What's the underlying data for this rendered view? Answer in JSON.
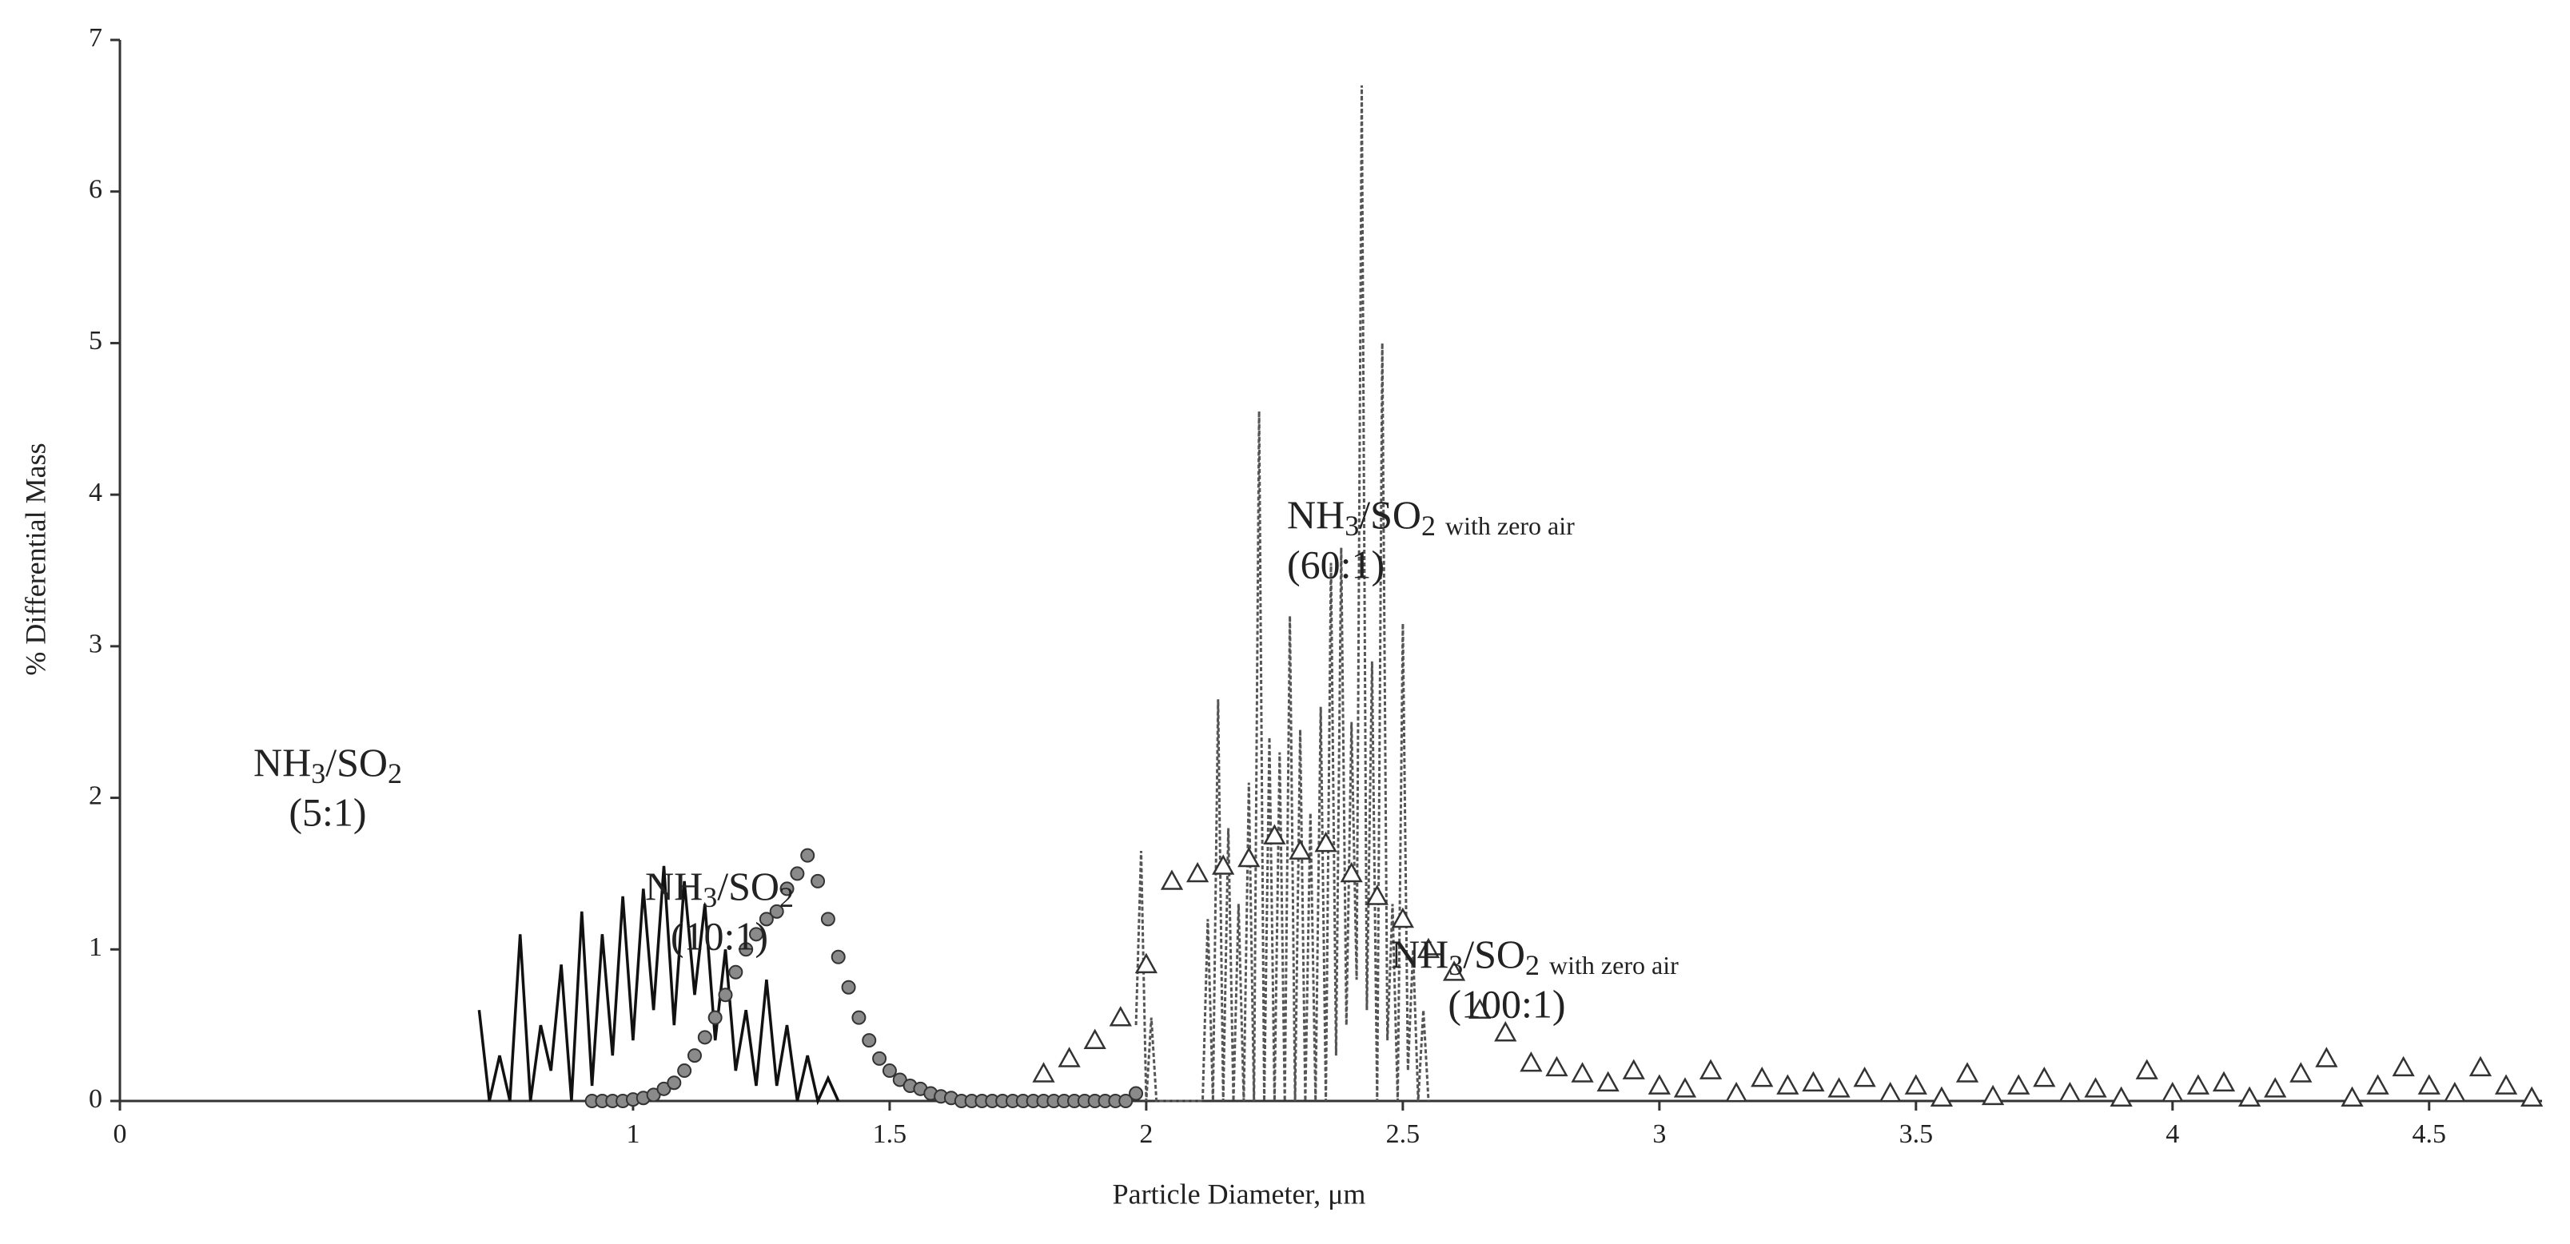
{
  "chart_data": {
    "type": "scatter",
    "x_label": "Particle Diameter, μm",
    "y_label": "% Differential Mass",
    "xlim": [
      0,
      4.72
    ],
    "ylim": [
      0,
      7
    ],
    "xticks": [
      0,
      1,
      1.5,
      2,
      2.5,
      3,
      3.5,
      4,
      4.5
    ],
    "yticks": [
      0,
      1,
      2,
      3,
      4,
      5,
      6,
      7
    ],
    "annotations": [
      {
        "parts": [
          "NH",
          "3",
          "/SO",
          "2"
        ],
        "ratio": "(5:1)"
      },
      {
        "parts": [
          "NH",
          "3",
          "/SO",
          "2"
        ],
        "ratio": "(10:1)"
      },
      {
        "parts": [
          "NH",
          "3",
          "/SO",
          "2",
          "with zero air"
        ],
        "ratio": "(60:1)"
      },
      {
        "parts": [
          "NH",
          "3",
          "/SO",
          "2",
          "with zero air"
        ],
        "ratio": "(100:1)"
      }
    ],
    "series": [
      {
        "mode": "line",
        "color": "#111111",
        "x": [
          0.7,
          0.72,
          0.74,
          0.76,
          0.78,
          0.8,
          0.82,
          0.84,
          0.86,
          0.88,
          0.9,
          0.92,
          0.94,
          0.96,
          0.98,
          1.0,
          1.02,
          1.04,
          1.06,
          1.08,
          1.1,
          1.12,
          1.14,
          1.16,
          1.18,
          1.2,
          1.22,
          1.24,
          1.26,
          1.28,
          1.3,
          1.32,
          1.34,
          1.36,
          1.38,
          1.4
        ],
        "values": [
          0.6,
          0,
          0.3,
          0,
          1.1,
          0,
          0.5,
          0.2,
          0.9,
          0,
          1.25,
          0.1,
          1.1,
          0.3,
          1.35,
          0.4,
          1.4,
          0.6,
          1.55,
          0.5,
          1.45,
          0.7,
          1.3,
          0.4,
          1.0,
          0.2,
          0.6,
          0.1,
          0.8,
          0.1,
          0.5,
          0,
          0.3,
          0,
          0.15,
          0
        ]
      },
      {
        "mode": "circle",
        "color": "#8a8a8a",
        "x": [
          0.92,
          0.94,
          0.96,
          0.98,
          1.0,
          1.02,
          1.04,
          1.06,
          1.08,
          1.1,
          1.12,
          1.14,
          1.16,
          1.18,
          1.2,
          1.22,
          1.24,
          1.26,
          1.28,
          1.3,
          1.32,
          1.34,
          1.36,
          1.38,
          1.4,
          1.42,
          1.44,
          1.46,
          1.48,
          1.5,
          1.52,
          1.54,
          1.56,
          1.58,
          1.6,
          1.62,
          1.64,
          1.66,
          1.68,
          1.7,
          1.72,
          1.74,
          1.76,
          1.78,
          1.8,
          1.82,
          1.84,
          1.86,
          1.88,
          1.9,
          1.92,
          1.94,
          1.96,
          1.98
        ],
        "values": [
          0,
          0,
          0,
          0,
          0.01,
          0.02,
          0.04,
          0.08,
          0.12,
          0.2,
          0.3,
          0.42,
          0.55,
          0.7,
          0.85,
          1.0,
          1.1,
          1.2,
          1.25,
          1.4,
          1.5,
          1.62,
          1.45,
          1.2,
          0.95,
          0.75,
          0.55,
          0.4,
          0.28,
          0.2,
          0.14,
          0.1,
          0.08,
          0.05,
          0.03,
          0.02,
          0,
          0,
          0,
          0,
          0,
          0,
          0,
          0,
          0,
          0,
          0,
          0,
          0,
          0,
          0,
          0,
          0,
          0.05
        ]
      },
      {
        "mode": "dashed-line",
        "color": "#555555",
        "x": [
          1.98,
          1.99,
          2.0,
          2.01,
          2.02,
          2.03,
          2.04,
          2.05,
          2.06,
          2.07,
          2.08,
          2.09,
          2.1,
          2.11,
          2.12,
          2.13,
          2.14,
          2.15,
          2.16,
          2.17,
          2.18,
          2.19,
          2.2,
          2.21,
          2.22,
          2.23,
          2.24,
          2.25,
          2.26,
          2.27,
          2.28,
          2.29,
          2.3,
          2.31,
          2.32,
          2.33,
          2.34,
          2.35,
          2.36,
          2.37,
          2.38,
          2.39,
          2.4,
          2.41,
          2.42,
          2.43,
          2.44,
          2.45,
          2.46,
          2.47,
          2.48,
          2.49,
          2.5,
          2.51,
          2.52,
          2.53,
          2.54,
          2.55
        ],
        "values": [
          0.5,
          1.65,
          0,
          0.55,
          0,
          0,
          0,
          0,
          0,
          0,
          0,
          0,
          0,
          0,
          1.2,
          0,
          2.65,
          0,
          1.8,
          0,
          1.3,
          0,
          2.1,
          0,
          4.55,
          0,
          2.4,
          0,
          2.3,
          0,
          3.2,
          0,
          2.45,
          0,
          1.9,
          0,
          2.6,
          0,
          3.55,
          0.3,
          3.65,
          0.5,
          2.5,
          0.8,
          6.7,
          0.6,
          2.9,
          0,
          5.0,
          0.4,
          1.3,
          0,
          3.15,
          0.2,
          1.0,
          0,
          0.6,
          0
        ]
      },
      {
        "mode": "triangle",
        "color": "#333333",
        "x": [
          1.8,
          1.85,
          1.9,
          1.95,
          2.0,
          2.05,
          2.1,
          2.15,
          2.2,
          2.25,
          2.3,
          2.35,
          2.4,
          2.45,
          2.5,
          2.55,
          2.6,
          2.65,
          2.7,
          2.75,
          2.8,
          2.85,
          2.9,
          2.95,
          3.0,
          3.05,
          3.1,
          3.15,
          3.2,
          3.25,
          3.3,
          3.35,
          3.4,
          3.45,
          3.5,
          3.55,
          3.6,
          3.65,
          3.7,
          3.75,
          3.8,
          3.85,
          3.9,
          3.95,
          4.0,
          4.05,
          4.1,
          4.15,
          4.2,
          4.25,
          4.3,
          4.35,
          4.4,
          4.45,
          4.5,
          4.55,
          4.6,
          4.65,
          4.7
        ],
        "values": [
          0.18,
          0.28,
          0.4,
          0.55,
          0.9,
          1.45,
          1.5,
          1.55,
          1.6,
          1.75,
          1.65,
          1.7,
          1.5,
          1.35,
          1.2,
          1.0,
          0.85,
          0.6,
          0.45,
          0.25,
          0.22,
          0.18,
          0.12,
          0.2,
          0.1,
          0.08,
          0.2,
          0.05,
          0.15,
          0.1,
          0.12,
          0.08,
          0.15,
          0.05,
          0.1,
          0.02,
          0.18,
          0.03,
          0.1,
          0.15,
          0.05,
          0.08,
          0.02,
          0.2,
          0.05,
          0.1,
          0.12,
          0.02,
          0.08,
          0.18,
          0.28,
          0.02,
          0.1,
          0.22,
          0.1,
          0.05,
          0.22,
          0.1,
          0.02
        ]
      }
    ]
  }
}
